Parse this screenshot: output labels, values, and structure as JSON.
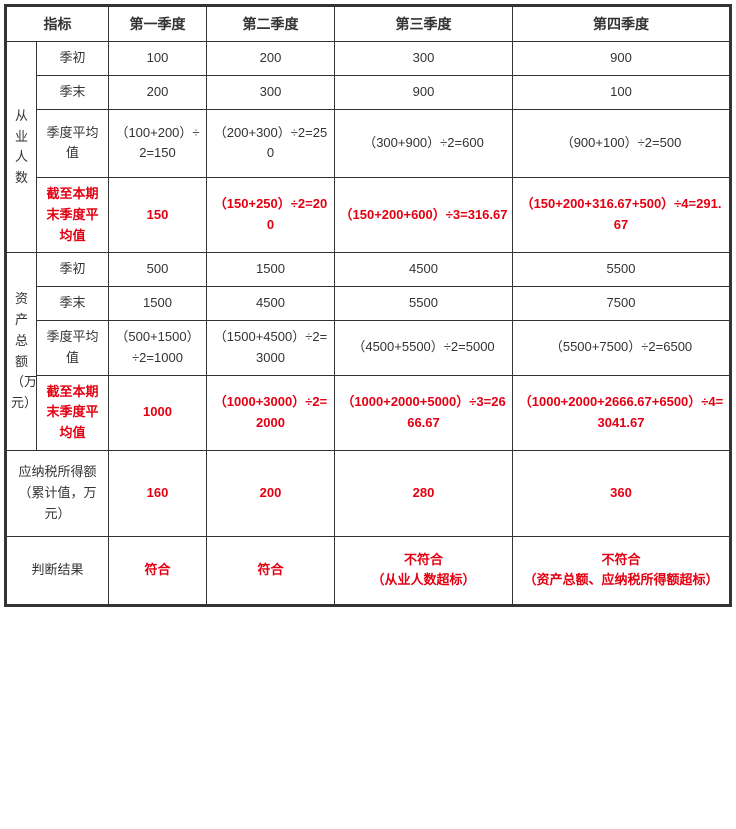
{
  "header": {
    "indicator": "指标",
    "q1": "第一季度",
    "q2": "第二季度",
    "q3": "第三季度",
    "q4": "第四季度"
  },
  "groups": {
    "employees": "从业人数",
    "assets": "资产总额（万元）"
  },
  "rowLabels": {
    "start": "季初",
    "end": "季末",
    "avg": "季度平均值",
    "cum": "截至本期末季度平均值"
  },
  "employees": {
    "start": {
      "q1": "100",
      "q2": "200",
      "q3": "300",
      "q4": "900"
    },
    "end": {
      "q1": "200",
      "q2": "300",
      "q3": "900",
      "q4": "100"
    },
    "avg": {
      "q1": "（100+200）÷2=150",
      "q2": "（200+300）÷2=250",
      "q3": "（300+900）÷2=600",
      "q4": "（900+100）÷2=500"
    },
    "cum": {
      "q1": "150",
      "q2": "（150+250）÷2=200",
      "q3": "（150+200+600）÷3=316.67",
      "q4": "（150+200+316.67+500）÷4=291.67"
    }
  },
  "assets": {
    "start": {
      "q1": "500",
      "q2": "1500",
      "q3": "4500",
      "q4": "5500"
    },
    "end": {
      "q1": "1500",
      "q2": "4500",
      "q3": "5500",
      "q4": "7500"
    },
    "avg": {
      "q1": "（500+1500）÷2=1000",
      "q2": "（1500+4500）÷2=3000",
      "q3": "（4500+5500）÷2=5000",
      "q4": "（5500+7500）÷2=6500"
    },
    "cum": {
      "q1": "1000",
      "q2": "（1000+3000）÷2=2000",
      "q3": "（1000+2000+5000）÷3=2666.67",
      "q4": "（1000+2000+2666.67+6500）÷4=3041.67"
    }
  },
  "taxable": {
    "label": "应纳税所得额（累计值，万元）",
    "q1": "160",
    "q2": "200",
    "q3": "280",
    "q4": "360"
  },
  "verdict": {
    "label": "判断结果",
    "q1": "符合",
    "q2": "符合",
    "q3": "不符合\n（从业人数超标）",
    "q4": "不符合\n（资产总额、应纳税所得额超标）"
  }
}
